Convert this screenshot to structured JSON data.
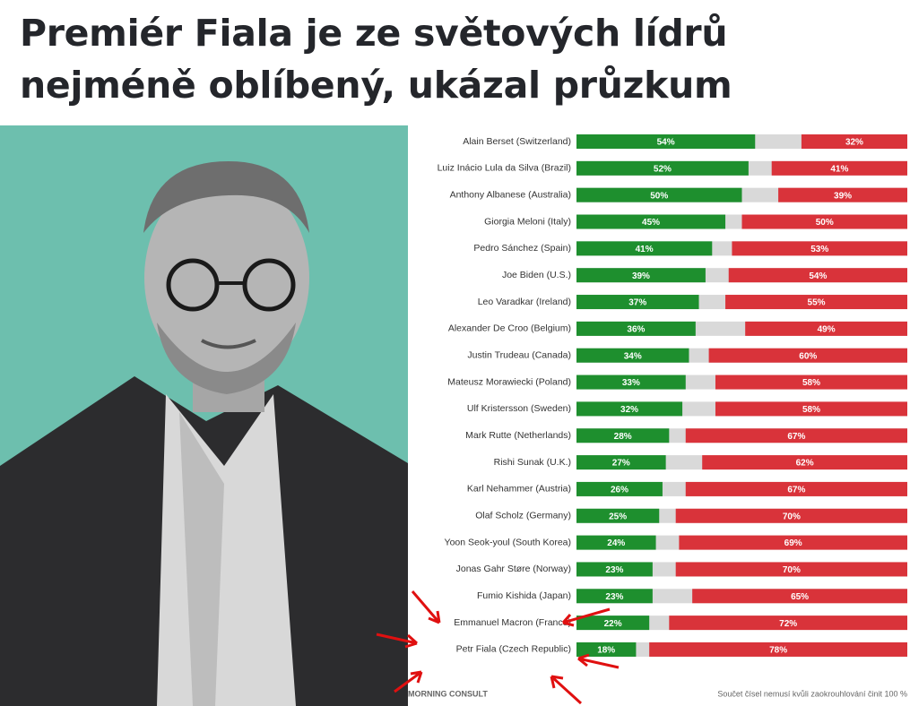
{
  "chart_data": {
    "type": "stacked-bar-horizontal",
    "title": "Premiér Fiala je ze světových lídrů nejméně oblíbený, ukázal průzkum",
    "categories": [
      "Alain Berset (Switzerland)",
      "Luiz Inácio Lula da Silva (Brazil)",
      "Anthony Albanese (Australia)",
      "Giorgia Meloni (Italy)",
      "Pedro Sánchez (Spain)",
      "Joe Biden (U.S.)",
      "Leo Varadkar (Ireland)",
      "Alexander De Croo (Belgium)",
      "Justin Trudeau (Canada)",
      "Mateusz Morawiecki (Poland)",
      "Ulf Kristersson (Sweden)",
      "Mark Rutte (Netherlands)",
      "Rishi Sunak (U.K.)",
      "Karl Nehammer (Austria)",
      "Olaf Scholz (Germany)",
      "Yoon Seok-youl (South Korea)",
      "Jonas Gahr Støre (Norway)",
      "Fumio Kishida (Japan)",
      "Emmanuel Macron (France)",
      "Petr Fiala (Czech Republic)"
    ],
    "series": [
      {
        "color": "#1e8f2e",
        "values": [
          54,
          52,
          50,
          45,
          41,
          39,
          37,
          36,
          34,
          33,
          32,
          28,
          27,
          26,
          25,
          24,
          23,
          23,
          22,
          18
        ],
        "value_labels": [
          "54%",
          "52%",
          "50%",
          "45%",
          "41%",
          "39%",
          "37%",
          "36%",
          "34%",
          "33%",
          "32%",
          "28%",
          "27%",
          "26%",
          "25%",
          "24%",
          "23%",
          "23%",
          "22%",
          "18%"
        ]
      },
      {
        "color": "#d9333a",
        "values": [
          32,
          41,
          39,
          50,
          53,
          54,
          55,
          49,
          60,
          58,
          58,
          67,
          62,
          67,
          70,
          69,
          70,
          65,
          72,
          78
        ],
        "value_labels": [
          "32%",
          "41%",
          "39%",
          "50%",
          "53%",
          "54%",
          "55%",
          "49%",
          "60%",
          "58%",
          "58%",
          "67%",
          "62%",
          "67%",
          "70%",
          "69%",
          "70%",
          "65%",
          "72%",
          "78%"
        ]
      }
    ],
    "xlim": [
      0,
      100
    ],
    "source": "MORNING CONSULT",
    "note": "Součet čísel nemusí kvůli zaokrouhlování činit 100 %"
  }
}
